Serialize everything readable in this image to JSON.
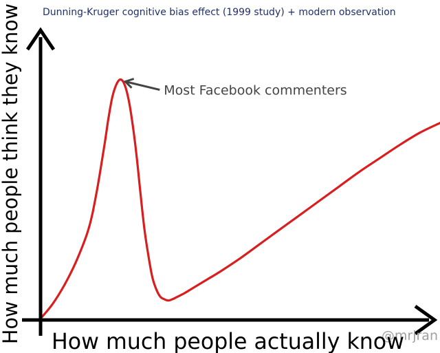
{
  "chart_data": {
    "type": "line",
    "title": "Dunning-Kruger cognitive bias effect (1999 study) + modern observation",
    "xlabel": "How much people actually know",
    "ylabel": "How much people think they know",
    "xlim": [
      0,
      100
    ],
    "ylim": [
      0,
      100
    ],
    "grid": false,
    "legend": "none",
    "series": [
      {
        "x": [
          0,
          3,
          6,
          9,
          12,
          14,
          16,
          17,
          18,
          19,
          20,
          21,
          22,
          23,
          24,
          25,
          26,
          27,
          28,
          29,
          30,
          31,
          32,
          33,
          34,
          36,
          38,
          40,
          42,
          45,
          50,
          55,
          60,
          65,
          70,
          75,
          80,
          85,
          90,
          95,
          100
        ],
        "y": [
          0,
          6,
          14,
          24,
          37,
          52,
          72,
          83,
          92,
          97,
          99,
          97,
          91,
          81,
          68,
          52,
          37,
          26,
          17,
          12,
          9,
          8,
          7.5,
          8,
          8.8,
          10.5,
          12.5,
          14.5,
          16.5,
          19.5,
          25,
          31,
          37,
          43,
          49,
          55,
          61,
          66.5,
          72,
          77,
          81
        ]
      }
    ],
    "annotations": [
      {
        "text": "Most Facebook commenters",
        "x": 19.5,
        "y": 99
      }
    ]
  },
  "credit": "@mrjran",
  "colors": {
    "line": "#d81e1e",
    "axis": "#000000",
    "title": "#1f2f6b",
    "annotation": "#444444",
    "credit": "#a0a0a0"
  }
}
